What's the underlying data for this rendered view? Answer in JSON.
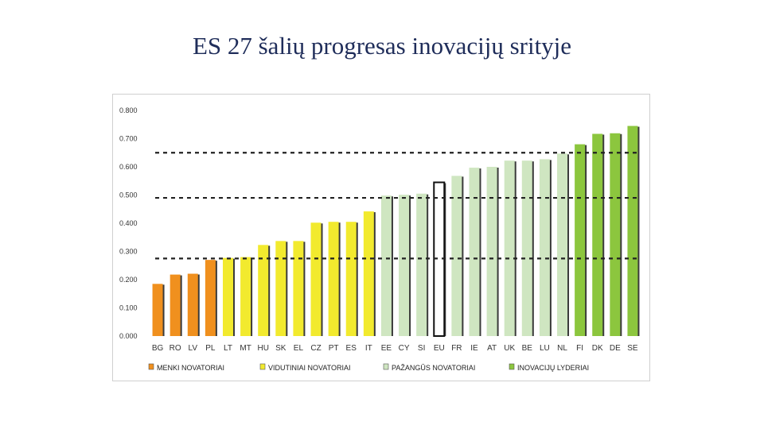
{
  "title": "ES 27 šalių progresas inovacijų srityje",
  "colors": {
    "modest": "#f0901e",
    "moderate": "#f2ea2e",
    "follower": "#cfe6c1",
    "leader": "#8cc63e",
    "eu": "#ffffff",
    "dashed": "#222222"
  },
  "chart_data": {
    "type": "bar",
    "categories": [
      "BG",
      "RO",
      "LV",
      "PL",
      "LT",
      "MT",
      "HU",
      "SK",
      "EL",
      "CZ",
      "PT",
      "ES",
      "IT",
      "EE",
      "CY",
      "SI",
      "EU",
      "FR",
      "IE",
      "AT",
      "UK",
      "BE",
      "LU",
      "NL",
      "FI",
      "DK",
      "DE",
      "SE"
    ],
    "values": [
      0.185,
      0.218,
      0.221,
      0.27,
      0.277,
      0.28,
      0.323,
      0.337,
      0.337,
      0.402,
      0.405,
      0.405,
      0.442,
      0.498,
      0.501,
      0.505,
      0.545,
      0.568,
      0.597,
      0.6,
      0.622,
      0.622,
      0.627,
      0.647,
      0.68,
      0.717,
      0.719,
      0.745
    ],
    "groups": [
      "modest",
      "modest",
      "modest",
      "modest",
      "moderate",
      "moderate",
      "moderate",
      "moderate",
      "moderate",
      "moderate",
      "moderate",
      "moderate",
      "moderate",
      "follower",
      "follower",
      "follower",
      "eu",
      "follower",
      "follower",
      "follower",
      "follower",
      "follower",
      "follower",
      "follower",
      "leader",
      "leader",
      "leader",
      "leader"
    ],
    "yticks": [
      "0.000",
      "0.100",
      "0.200",
      "0.300",
      "0.400",
      "0.500",
      "0.600",
      "0.700",
      "0.800"
    ],
    "ylim": [
      0,
      0.8
    ],
    "thresholds": [
      0.275,
      0.49,
      0.65
    ],
    "legend": [
      {
        "key": "modest",
        "label": "MENKI NOVATORIAI"
      },
      {
        "key": "moderate",
        "label": "VIDUTINIAI NOVATORIAI"
      },
      {
        "key": "follower",
        "label": "PAŽANGŪS NOVATORIAI"
      },
      {
        "key": "leader",
        "label": "INOVACIJŲ LYDERIAI"
      }
    ],
    "legend_position": "bottom",
    "grid": false
  }
}
